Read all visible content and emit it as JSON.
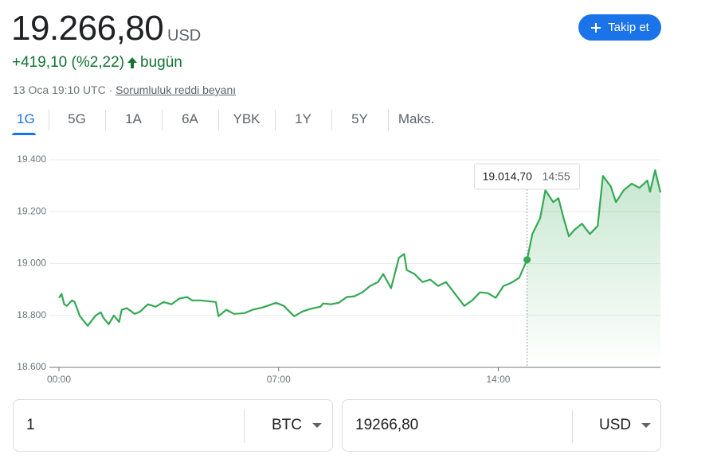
{
  "header": {
    "price": "19.266,80",
    "currency": "USD",
    "change": "+419,10 (%2,22)",
    "period": "bugün",
    "timestamp": "13 Oca 19:10 UTC · ",
    "disclaimer": "Sorumluluk reddi beyanı",
    "follow_button": "Takip et"
  },
  "tabs": {
    "items": [
      "1G",
      "5G",
      "1A",
      "6A",
      "YBK",
      "1Y",
      "5Y",
      "Maks."
    ],
    "active": 0
  },
  "chart_data": {
    "type": "line",
    "x": [
      0,
      5,
      10,
      15,
      25,
      30,
      40,
      55,
      70,
      80,
      85,
      95,
      105,
      115,
      120,
      130,
      145,
      155,
      170,
      185,
      200,
      215,
      230,
      245,
      255,
      270,
      285,
      300,
      305,
      320,
      335,
      355,
      370,
      390,
      415,
      430,
      445,
      450,
      465,
      480,
      500,
      505,
      520,
      535,
      550,
      565,
      580,
      595,
      610,
      620,
      635,
      650,
      660,
      665,
      680,
      695,
      710,
      725,
      740,
      755,
      775,
      790,
      805,
      820,
      835,
      850,
      865,
      880,
      895,
      905,
      920,
      930,
      945,
      955,
      965,
      975,
      985,
      1000,
      1015,
      1030,
      1040,
      1055,
      1065,
      1080,
      1095,
      1110,
      1125,
      1130,
      1140,
      1150
    ],
    "series": [
      {
        "name": "BTC/USD",
        "color": "#34a853",
        "values": [
          18868,
          18883,
          18843,
          18837,
          18858,
          18852,
          18797,
          18760,
          18800,
          18812,
          18791,
          18766,
          18800,
          18775,
          18822,
          18828,
          18806,
          18815,
          18843,
          18834,
          18852,
          18843,
          18865,
          18871,
          18858,
          18858,
          18855,
          18852,
          18797,
          18822,
          18806,
          18809,
          18822,
          18831,
          18849,
          18837,
          18806,
          18797,
          18815,
          18825,
          18834,
          18846,
          18843,
          18849,
          18871,
          18874,
          18889,
          18914,
          18929,
          18960,
          18905,
          19022,
          19037,
          18975,
          18960,
          18929,
          18938,
          18914,
          18929,
          18889,
          18837,
          18858,
          18889,
          18886,
          18868,
          18914,
          18926,
          18945,
          19014.7,
          19114,
          19175,
          19283,
          19237,
          19252,
          19175,
          19105,
          19129,
          19154,
          19114,
          19145,
          19338,
          19298,
          19237,
          19283,
          19308,
          19292,
          19320,
          19277,
          19360,
          19274
        ]
      }
    ],
    "xlim": [
      0,
      1150
    ],
    "xticks": [
      {
        "value": 0,
        "label": "00:00"
      },
      {
        "value": 420,
        "label": "07:00"
      },
      {
        "value": 840,
        "label": "14:00"
      }
    ],
    "ylim": [
      18600,
      19400
    ],
    "yticks": [
      {
        "value": 18600,
        "label": "18.600"
      },
      {
        "value": 18800,
        "label": "18.800"
      },
      {
        "value": 19000,
        "label": "19.000"
      },
      {
        "value": 19200,
        "label": "19.200"
      },
      {
        "value": 19400,
        "label": "19.400"
      }
    ],
    "grid": true,
    "cursor": {
      "x": 895,
      "time_label": "14:55",
      "value": 19014.7,
      "value_label": "19.014,70"
    }
  },
  "converter": {
    "from_amount": "1",
    "from_currency": "BTC",
    "to_amount": "19266,80",
    "to_currency": "USD"
  }
}
